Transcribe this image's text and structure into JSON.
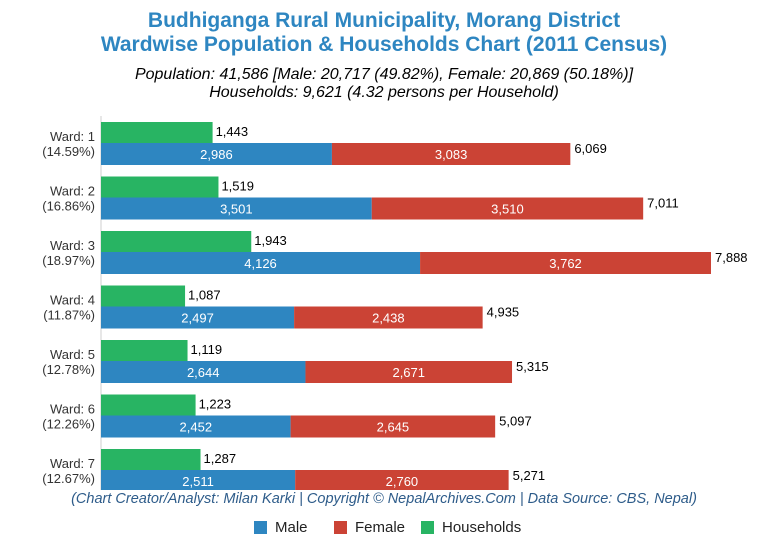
{
  "title_line1": "Budhiganga Rural Municipality, Morang District",
  "title_line2": "Wardwise Population & Households Chart (2011 Census)",
  "subtitle_line1": "Population: 41,586 [Male: 20,717 (49.82%), Female: 20,869 (50.18%)]",
  "subtitle_line2": "Households: 9,621 (4.32 persons per Household)",
  "footer": "(Chart Creator/Analyst: Milan Karki | Copyright © NepalArchives.Com | Data Source: CBS, Nepal)",
  "colors": {
    "male": "#2e86c1",
    "female": "#cb4335",
    "households": "#28b463",
    "title": "#2e86c1"
  },
  "chart_data": {
    "type": "bar",
    "orientation": "horizontal",
    "stacked": [
      "Male",
      "Female"
    ],
    "categories": [
      {
        "ward": "Ward: 1",
        "pct": "(14.59%)"
      },
      {
        "ward": "Ward: 2",
        "pct": "(16.86%)"
      },
      {
        "ward": "Ward: 3",
        "pct": "(18.97%)"
      },
      {
        "ward": "Ward: 4",
        "pct": "(11.87%)"
      },
      {
        "ward": "Ward: 5",
        "pct": "(12.78%)"
      },
      {
        "ward": "Ward: 6",
        "pct": "(12.26%)"
      },
      {
        "ward": "Ward: 7",
        "pct": "(12.67%)"
      }
    ],
    "series": [
      {
        "name": "Male",
        "values": [
          2986,
          3501,
          4126,
          2497,
          2644,
          2452,
          2511
        ],
        "labels": [
          "2,986",
          "3,501",
          "4,126",
          "2,497",
          "2,644",
          "2,452",
          "2,511"
        ]
      },
      {
        "name": "Female",
        "values": [
          3083,
          3510,
          3762,
          2438,
          2671,
          2645,
          2760
        ],
        "labels": [
          "3,083",
          "3,510",
          "3,762",
          "2,438",
          "2,671",
          "2,645",
          "2,760"
        ]
      },
      {
        "name": "Households",
        "values": [
          1443,
          1519,
          1943,
          1087,
          1119,
          1223,
          1287
        ],
        "labels": [
          "1,443",
          "1,519",
          "1,943",
          "1,087",
          "1,119",
          "1,223",
          "1,287"
        ]
      }
    ],
    "totals": [
      6069,
      7011,
      7888,
      4935,
      5315,
      5097,
      5271
    ],
    "total_labels": [
      "6,069",
      "7,011",
      "7,888",
      "4,935",
      "5,315",
      "5,097",
      "5,271"
    ],
    "legend": [
      "Male",
      "Female",
      "Households"
    ],
    "legend_position": "bottom",
    "grid": false
  }
}
